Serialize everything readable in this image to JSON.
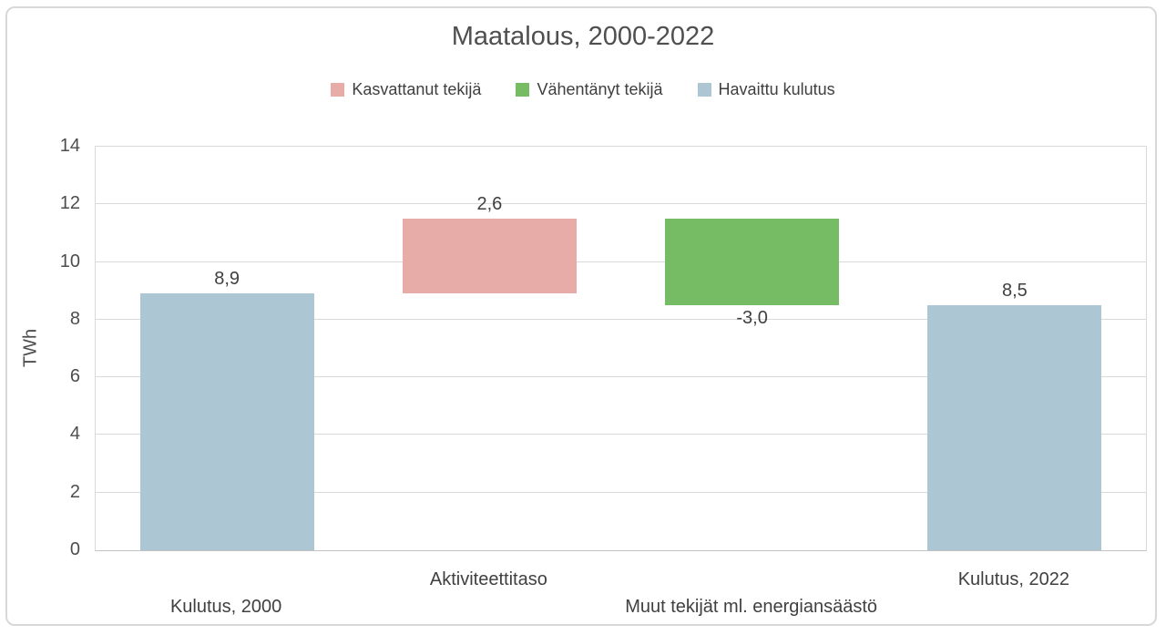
{
  "title": "Maatalous, 2000-2022",
  "legend": {
    "items": [
      {
        "key": "increase",
        "label": "Kasvattanut tekijä",
        "color": "#e7aba8"
      },
      {
        "key": "decrease",
        "label": "Vähentänyt tekijä",
        "color": "#76bc64"
      },
      {
        "key": "observed",
        "label": "Havaittu kulutus",
        "color": "#adc6d4"
      }
    ]
  },
  "colors": {
    "increase": "#e7aba8",
    "decrease": "#76bc64",
    "observed": "#adc6d4",
    "gridline": "#d9d9d9",
    "axis_line": "#c3c3c3",
    "text": "#404040"
  },
  "chart_data": {
    "type": "bar",
    "subtype": "waterfall",
    "title": "Maatalous, 2000-2022",
    "xlabel": "",
    "ylabel": "TWh",
    "ylim": [
      0,
      14
    ],
    "yticks": [
      0,
      2,
      4,
      6,
      8,
      10,
      12,
      14
    ],
    "grid": true,
    "legend_position": "top",
    "categories": [
      "Kulutus, 2000",
      "Aktiviteettitaso",
      "Muut tekijät ml. energiansäästö",
      "Kulutus, 2022"
    ],
    "series": [
      {
        "category": "Kulutus, 2000",
        "value": 8.9,
        "label": "8,9",
        "start": 0,
        "end": 8.9,
        "type": "observed",
        "label_side": "above"
      },
      {
        "category": "Aktiviteettitaso",
        "value": 2.6,
        "label": "2,6",
        "start": 8.9,
        "end": 11.5,
        "type": "increase",
        "label_side": "above"
      },
      {
        "category": "Muut tekijät ml. energiansäästö",
        "value": -3.0,
        "label": "-3,0",
        "start": 11.5,
        "end": 8.5,
        "type": "decrease",
        "label_side": "below"
      },
      {
        "category": "Kulutus, 2022",
        "value": 8.5,
        "label": "8,5",
        "start": 0,
        "end": 8.5,
        "type": "observed",
        "label_side": "above"
      }
    ]
  }
}
